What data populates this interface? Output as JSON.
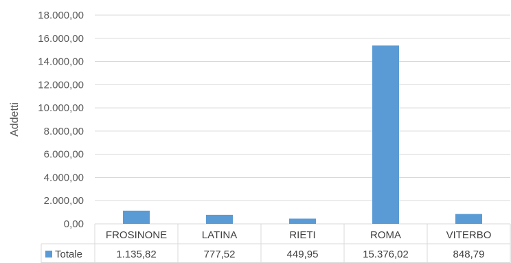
{
  "chart_data": {
    "type": "bar",
    "categories": [
      "FROSINONE",
      "LATINA",
      "RIETI",
      "ROMA",
      "VITERBO"
    ],
    "series": [
      {
        "name": "Totale",
        "values": [
          1135.82,
          777.52,
          449.95,
          15376.02,
          848.79
        ]
      }
    ],
    "value_labels": [
      "1.135,82",
      "777,52",
      "449,95",
      "15.376,02",
      "848,79"
    ],
    "ylabel": "Addetti",
    "xlabel": "",
    "ylim": [
      0,
      18000
    ],
    "y_ticks": [
      0,
      2000,
      4000,
      6000,
      8000,
      10000,
      12000,
      14000,
      16000,
      18000
    ],
    "y_tick_labels": [
      "0,00",
      "2.000,00",
      "4.000,00",
      "6.000,00",
      "8.000,00",
      "10.000,00",
      "12.000,00",
      "14.000,00",
      "16.000,00",
      "18.000,00"
    ],
    "grid": true,
    "data_table": true,
    "legend_position": "data-table",
    "colors": {
      "bar": "#5b9bd5",
      "grid": "#d9d9d9",
      "text": "#595959"
    }
  }
}
